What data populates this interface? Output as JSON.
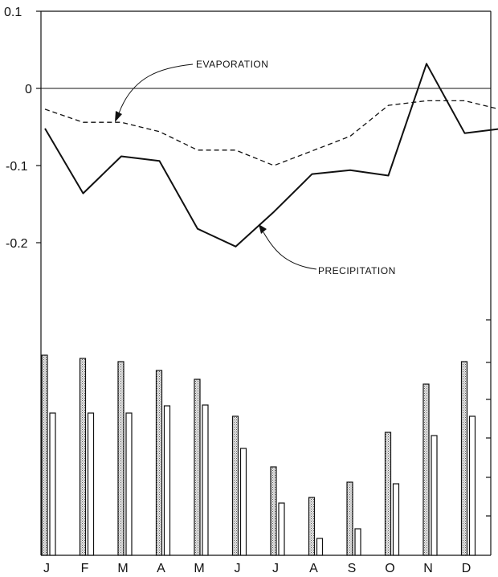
{
  "chart_data": [
    {
      "type": "line",
      "categories": [
        "J",
        "F",
        "M",
        "A",
        "M",
        "J",
        "J",
        "A",
        "S",
        "O",
        "N",
        "D",
        ""
      ],
      "y_ticks": [
        "0.1",
        "0",
        "-0.1",
        "-0.2"
      ],
      "ylim": [
        -0.3,
        0.1
      ],
      "grid": false,
      "series": [
        {
          "name": "EVAPORATION",
          "style": "dashed",
          "values": [
            -0.027,
            -0.044,
            -0.044,
            -0.056,
            -0.08,
            -0.08,
            -0.1,
            -0.081,
            -0.062,
            -0.022,
            -0.016,
            -0.016,
            -0.028
          ]
        },
        {
          "name": "PRECIPITATION",
          "style": "solid",
          "values": [
            -0.052,
            -0.136,
            -0.088,
            -0.094,
            -0.182,
            -0.205,
            -0.16,
            -0.111,
            -0.106,
            -0.113,
            0.032,
            -0.058,
            -0.052
          ]
        }
      ],
      "annotations": [
        "EVAPORATION",
        "PRECIPITATION"
      ]
    },
    {
      "type": "bar",
      "categories": [
        "J",
        "F",
        "M",
        "A",
        "M",
        "J",
        "J",
        "A",
        "S",
        "O",
        "N",
        "D"
      ],
      "ylim": [
        0,
        260
      ],
      "series": [
        {
          "values": [
            249,
            245,
            241,
            230,
            219,
            173,
            110,
            72,
            91,
            153,
            213,
            241
          ]
        },
        {
          "values": [
            177,
            177,
            177,
            186,
            187,
            133,
            65,
            21,
            33,
            89,
            149,
            173
          ]
        }
      ]
    }
  ],
  "colors": {
    "ink": "#111111",
    "background": "#ffffff",
    "stipple": "#8a8a8a"
  }
}
